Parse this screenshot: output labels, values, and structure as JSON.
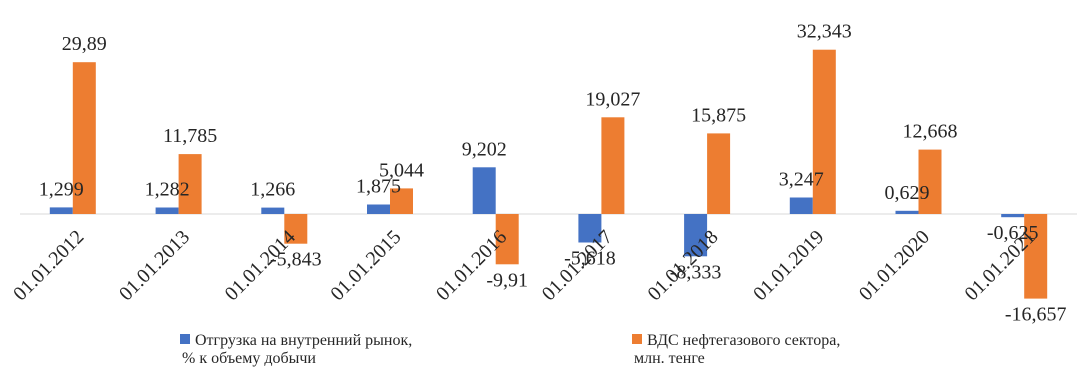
{
  "chart_data": {
    "type": "bar",
    "categories": [
      "01.01.2012",
      "01.01.2013",
      "01.01.2014",
      "01.01.2015",
      "01.01.2016",
      "01.01.2017",
      "01.01.2018",
      "01.01.2019",
      "01.01.2020",
      "01.01.2021"
    ],
    "series": [
      {
        "name": "Отгрузка на внутренний рынок, % к объему добычи",
        "name_line1": "Отгрузка на внутренний рынок,",
        "name_line2": "% к объему добычи",
        "color": "#4472C4",
        "values": [
          1.299,
          1.282,
          1.266,
          1.875,
          9.202,
          -5.618,
          -8.333,
          3.247,
          0.629,
          -0.625
        ],
        "labels": [
          "1,299",
          "1,282",
          "1,266",
          "1,875",
          "9,202",
          "-5,618",
          "-8,333",
          "3,247",
          "0,629",
          "-0,625"
        ]
      },
      {
        "name": "ВДС нефтегазового сектора, млн. тенге",
        "name_line1": "ВДС нефтегазового сектора,",
        "name_line2": "млн. тенге",
        "color": "#ED7D31",
        "values": [
          29.89,
          11.785,
          -5.843,
          5.044,
          -9.91,
          19.027,
          15.875,
          32.343,
          12.668,
          -16.657
        ],
        "labels": [
          "29,89",
          "11,785",
          "-5,843",
          "5,044",
          "-9,91",
          "19,027",
          "15,875",
          "32,343",
          "12,668",
          "-16,657"
        ]
      }
    ],
    "title": "",
    "xlabel": "",
    "ylabel": "",
    "grid": false,
    "legend_position": "bottom"
  }
}
